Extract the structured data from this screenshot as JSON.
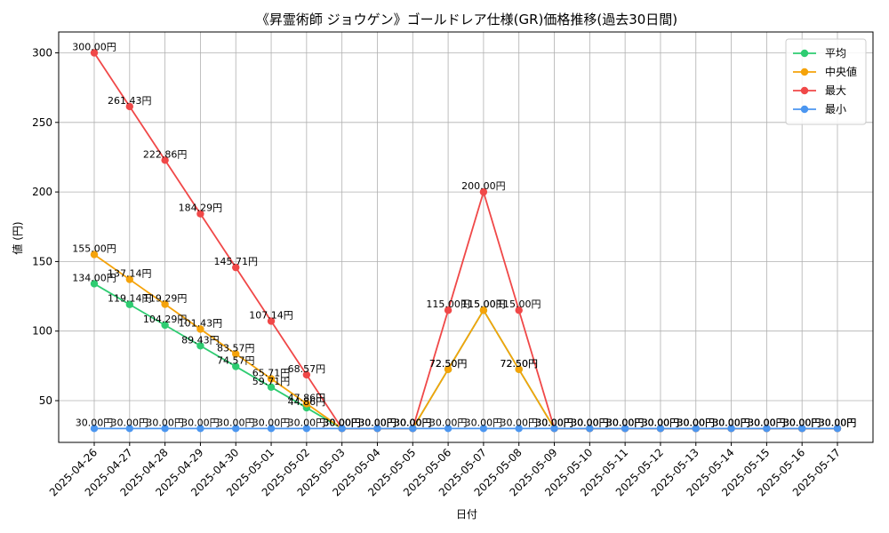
{
  "chart_data": {
    "type": "line",
    "title": "《昇霊術師 ジョウゲン》ゴールドレア仕様(GR)価格推移(過去30日間)",
    "xlabel": "日付",
    "ylabel": "値 (円)",
    "ylim": [
      20,
      315
    ],
    "yticks": [
      50,
      100,
      150,
      200,
      250,
      300
    ],
    "grid": true,
    "legend_position": "top-right",
    "label_suffix": "円",
    "x": [
      "2025-04-26",
      "2025-04-27",
      "2025-04-28",
      "2025-04-29",
      "2025-04-30",
      "2025-05-01",
      "2025-05-02",
      "2025-05-03",
      "2025-05-04",
      "2025-05-05",
      "2025-05-06",
      "2025-05-07",
      "2025-05-08",
      "2025-05-09",
      "2025-05-10",
      "2025-05-11",
      "2025-05-12",
      "2025-05-13",
      "2025-05-14",
      "2025-05-15",
      "2025-05-16",
      "2025-05-17"
    ],
    "series": [
      {
        "name": "平均",
        "color": "#2ecc71",
        "values": [
          134.0,
          119.14,
          104.29,
          89.43,
          74.57,
          59.71,
          44.86,
          30.0,
          30.0,
          30.0,
          72.5,
          115.0,
          72.5,
          30.0,
          30.0,
          30.0,
          30.0,
          30.0,
          30.0,
          30.0,
          30.0,
          30.0
        ]
      },
      {
        "name": "中央値",
        "color": "#f5a30a",
        "values": [
          155.0,
          137.14,
          119.29,
          101.43,
          83.57,
          65.71,
          47.86,
          30.0,
          30.0,
          30.0,
          72.5,
          115.0,
          72.5,
          30.0,
          30.0,
          30.0,
          30.0,
          30.0,
          30.0,
          30.0,
          30.0,
          30.0
        ]
      },
      {
        "name": "最大",
        "color": "#f04848",
        "values": [
          300.0,
          261.43,
          222.86,
          184.29,
          145.71,
          107.14,
          68.57,
          30.0,
          30.0,
          30.0,
          115.0,
          200.0,
          115.0,
          30.0,
          30.0,
          30.0,
          30.0,
          30.0,
          30.0,
          30.0,
          30.0,
          30.0
        ]
      },
      {
        "name": "最小",
        "color": "#4b96f0",
        "values": [
          30.0,
          30.0,
          30.0,
          30.0,
          30.0,
          30.0,
          30.0,
          30.0,
          30.0,
          30.0,
          30.0,
          30.0,
          30.0,
          30.0,
          30.0,
          30.0,
          30.0,
          30.0,
          30.0,
          30.0,
          30.0,
          30.0
        ]
      }
    ]
  }
}
